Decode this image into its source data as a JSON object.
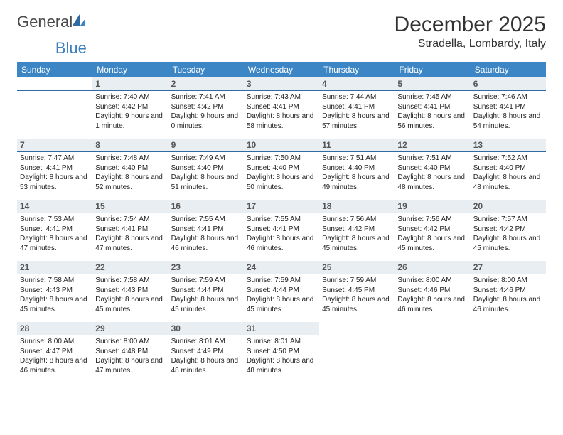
{
  "brand": {
    "part1": "General",
    "part2": "Blue"
  },
  "title": "December 2025",
  "location": "Stradella, Lombardy, Italy",
  "colors": {
    "header_bg": "#3d86c6",
    "header_text": "#ffffff",
    "daynum_bg": "#e9eef3",
    "hr": "#2f6aa3"
  },
  "daysOfWeek": [
    "Sunday",
    "Monday",
    "Tuesday",
    "Wednesday",
    "Thursday",
    "Friday",
    "Saturday"
  ],
  "weeks": [
    [
      {
        "blank": true
      },
      {
        "n": "1",
        "sr": "Sunrise: 7:40 AM",
        "ss": "Sunset: 4:42 PM",
        "dl": "Daylight: 9 hours and 1 minute."
      },
      {
        "n": "2",
        "sr": "Sunrise: 7:41 AM",
        "ss": "Sunset: 4:42 PM",
        "dl": "Daylight: 9 hours and 0 minutes."
      },
      {
        "n": "3",
        "sr": "Sunrise: 7:43 AM",
        "ss": "Sunset: 4:41 PM",
        "dl": "Daylight: 8 hours and 58 minutes."
      },
      {
        "n": "4",
        "sr": "Sunrise: 7:44 AM",
        "ss": "Sunset: 4:41 PM",
        "dl": "Daylight: 8 hours and 57 minutes."
      },
      {
        "n": "5",
        "sr": "Sunrise: 7:45 AM",
        "ss": "Sunset: 4:41 PM",
        "dl": "Daylight: 8 hours and 56 minutes."
      },
      {
        "n": "6",
        "sr": "Sunrise: 7:46 AM",
        "ss": "Sunset: 4:41 PM",
        "dl": "Daylight: 8 hours and 54 minutes."
      }
    ],
    [
      {
        "n": "7",
        "sr": "Sunrise: 7:47 AM",
        "ss": "Sunset: 4:41 PM",
        "dl": "Daylight: 8 hours and 53 minutes."
      },
      {
        "n": "8",
        "sr": "Sunrise: 7:48 AM",
        "ss": "Sunset: 4:40 PM",
        "dl": "Daylight: 8 hours and 52 minutes."
      },
      {
        "n": "9",
        "sr": "Sunrise: 7:49 AM",
        "ss": "Sunset: 4:40 PM",
        "dl": "Daylight: 8 hours and 51 minutes."
      },
      {
        "n": "10",
        "sr": "Sunrise: 7:50 AM",
        "ss": "Sunset: 4:40 PM",
        "dl": "Daylight: 8 hours and 50 minutes."
      },
      {
        "n": "11",
        "sr": "Sunrise: 7:51 AM",
        "ss": "Sunset: 4:40 PM",
        "dl": "Daylight: 8 hours and 49 minutes."
      },
      {
        "n": "12",
        "sr": "Sunrise: 7:51 AM",
        "ss": "Sunset: 4:40 PM",
        "dl": "Daylight: 8 hours and 48 minutes."
      },
      {
        "n": "13",
        "sr": "Sunrise: 7:52 AM",
        "ss": "Sunset: 4:40 PM",
        "dl": "Daylight: 8 hours and 48 minutes."
      }
    ],
    [
      {
        "n": "14",
        "sr": "Sunrise: 7:53 AM",
        "ss": "Sunset: 4:41 PM",
        "dl": "Daylight: 8 hours and 47 minutes."
      },
      {
        "n": "15",
        "sr": "Sunrise: 7:54 AM",
        "ss": "Sunset: 4:41 PM",
        "dl": "Daylight: 8 hours and 47 minutes."
      },
      {
        "n": "16",
        "sr": "Sunrise: 7:55 AM",
        "ss": "Sunset: 4:41 PM",
        "dl": "Daylight: 8 hours and 46 minutes."
      },
      {
        "n": "17",
        "sr": "Sunrise: 7:55 AM",
        "ss": "Sunset: 4:41 PM",
        "dl": "Daylight: 8 hours and 46 minutes."
      },
      {
        "n": "18",
        "sr": "Sunrise: 7:56 AM",
        "ss": "Sunset: 4:42 PM",
        "dl": "Daylight: 8 hours and 45 minutes."
      },
      {
        "n": "19",
        "sr": "Sunrise: 7:56 AM",
        "ss": "Sunset: 4:42 PM",
        "dl": "Daylight: 8 hours and 45 minutes."
      },
      {
        "n": "20",
        "sr": "Sunrise: 7:57 AM",
        "ss": "Sunset: 4:42 PM",
        "dl": "Daylight: 8 hours and 45 minutes."
      }
    ],
    [
      {
        "n": "21",
        "sr": "Sunrise: 7:58 AM",
        "ss": "Sunset: 4:43 PM",
        "dl": "Daylight: 8 hours and 45 minutes."
      },
      {
        "n": "22",
        "sr": "Sunrise: 7:58 AM",
        "ss": "Sunset: 4:43 PM",
        "dl": "Daylight: 8 hours and 45 minutes."
      },
      {
        "n": "23",
        "sr": "Sunrise: 7:59 AM",
        "ss": "Sunset: 4:44 PM",
        "dl": "Daylight: 8 hours and 45 minutes."
      },
      {
        "n": "24",
        "sr": "Sunrise: 7:59 AM",
        "ss": "Sunset: 4:44 PM",
        "dl": "Daylight: 8 hours and 45 minutes."
      },
      {
        "n": "25",
        "sr": "Sunrise: 7:59 AM",
        "ss": "Sunset: 4:45 PM",
        "dl": "Daylight: 8 hours and 45 minutes."
      },
      {
        "n": "26",
        "sr": "Sunrise: 8:00 AM",
        "ss": "Sunset: 4:46 PM",
        "dl": "Daylight: 8 hours and 46 minutes."
      },
      {
        "n": "27",
        "sr": "Sunrise: 8:00 AM",
        "ss": "Sunset: 4:46 PM",
        "dl": "Daylight: 8 hours and 46 minutes."
      }
    ],
    [
      {
        "n": "28",
        "sr": "Sunrise: 8:00 AM",
        "ss": "Sunset: 4:47 PM",
        "dl": "Daylight: 8 hours and 46 minutes."
      },
      {
        "n": "29",
        "sr": "Sunrise: 8:00 AM",
        "ss": "Sunset: 4:48 PM",
        "dl": "Daylight: 8 hours and 47 minutes."
      },
      {
        "n": "30",
        "sr": "Sunrise: 8:01 AM",
        "ss": "Sunset: 4:49 PM",
        "dl": "Daylight: 8 hours and 48 minutes."
      },
      {
        "n": "31",
        "sr": "Sunrise: 8:01 AM",
        "ss": "Sunset: 4:50 PM",
        "dl": "Daylight: 8 hours and 48 minutes."
      },
      {
        "blank": true
      },
      {
        "blank": true
      },
      {
        "blank": true
      }
    ]
  ]
}
